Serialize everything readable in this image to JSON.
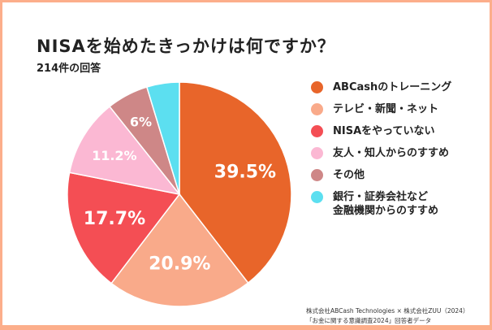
{
  "chart_data": {
    "type": "pie",
    "title": "NISAを始めたきっかけは何ですか？",
    "subtitle": "214件の回答",
    "slices": [
      {
        "label": "ABCashのトレーニング",
        "value": 39.5,
        "display": "39.5%",
        "color": "#E8652A"
      },
      {
        "label": "テレビ・新聞・ネット",
        "value": 20.9,
        "display": "20.9%",
        "color": "#F9AA8A"
      },
      {
        "label": "NISAをやっていない",
        "value": 17.7,
        "display": "17.7%",
        "color": "#F44E54"
      },
      {
        "label": "友人・知人からのすすめ",
        "value": 11.2,
        "display": "11.2%",
        "color": "#FBB8D3"
      },
      {
        "label": "その他",
        "value": 6,
        "display": "6%",
        "color": "#CE8787"
      },
      {
        "label": "銀行・証券会社など\n金融機関からのすすめ",
        "value": 4.7,
        "display": "",
        "color": "#5CDFF0"
      }
    ],
    "legend_position": "right"
  },
  "source": {
    "line1": "株式会社ABCash Technologies × 株式会社ZUU（2024）",
    "line2": "「お金に関する意識調査2024」回答者データ"
  }
}
